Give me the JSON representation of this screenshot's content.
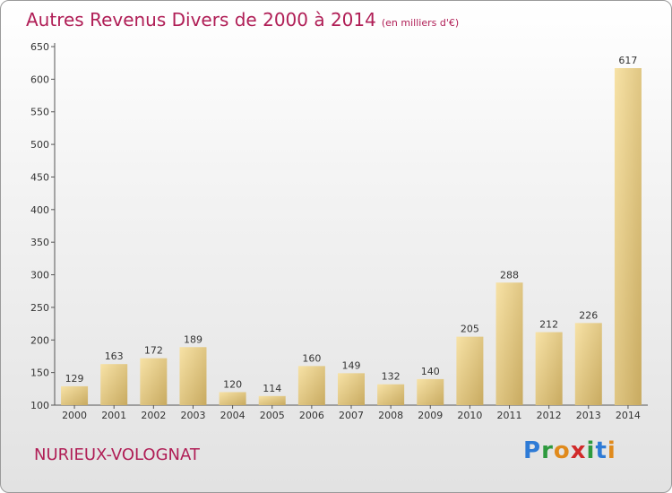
{
  "title": "Autres Revenus Divers de 2000 à 2014",
  "subtitle": "(en milliers d'€)",
  "place_name": "NURIEUX-VOLOGNAT",
  "logo": {
    "p": "P",
    "r": "r",
    "o": "o",
    "x": "x",
    "i": "i",
    "t": "t",
    "i2": "i"
  },
  "colors": {
    "title": "#b01e56",
    "bar_light": "#f4dc9a",
    "bar_dark": "#c9ac62",
    "axis": "#555555"
  },
  "chart_data": {
    "type": "bar",
    "title": "Autres Revenus Divers de 2000 à 2014",
    "subtitle": "(en milliers d'€)",
    "categories": [
      "2000",
      "2001",
      "2002",
      "2003",
      "2004",
      "2005",
      "2006",
      "2007",
      "2008",
      "2009",
      "2010",
      "2011",
      "2012",
      "2013",
      "2014"
    ],
    "values": [
      129,
      163,
      172,
      189,
      120,
      114,
      160,
      149,
      132,
      140,
      205,
      288,
      212,
      226,
      617
    ],
    "data_labels": [
      "129",
      "163",
      "172",
      "189",
      "120",
      "114",
      "160",
      "149",
      "132",
      "140",
      "205",
      "288",
      "212",
      "226",
      "617"
    ],
    "ylim": [
      100,
      650
    ],
    "yticks": [
      100,
      150,
      200,
      250,
      300,
      350,
      400,
      450,
      500,
      550,
      600,
      650
    ],
    "xlabel": "",
    "ylabel": "",
    "grid": false,
    "legend": "none"
  }
}
